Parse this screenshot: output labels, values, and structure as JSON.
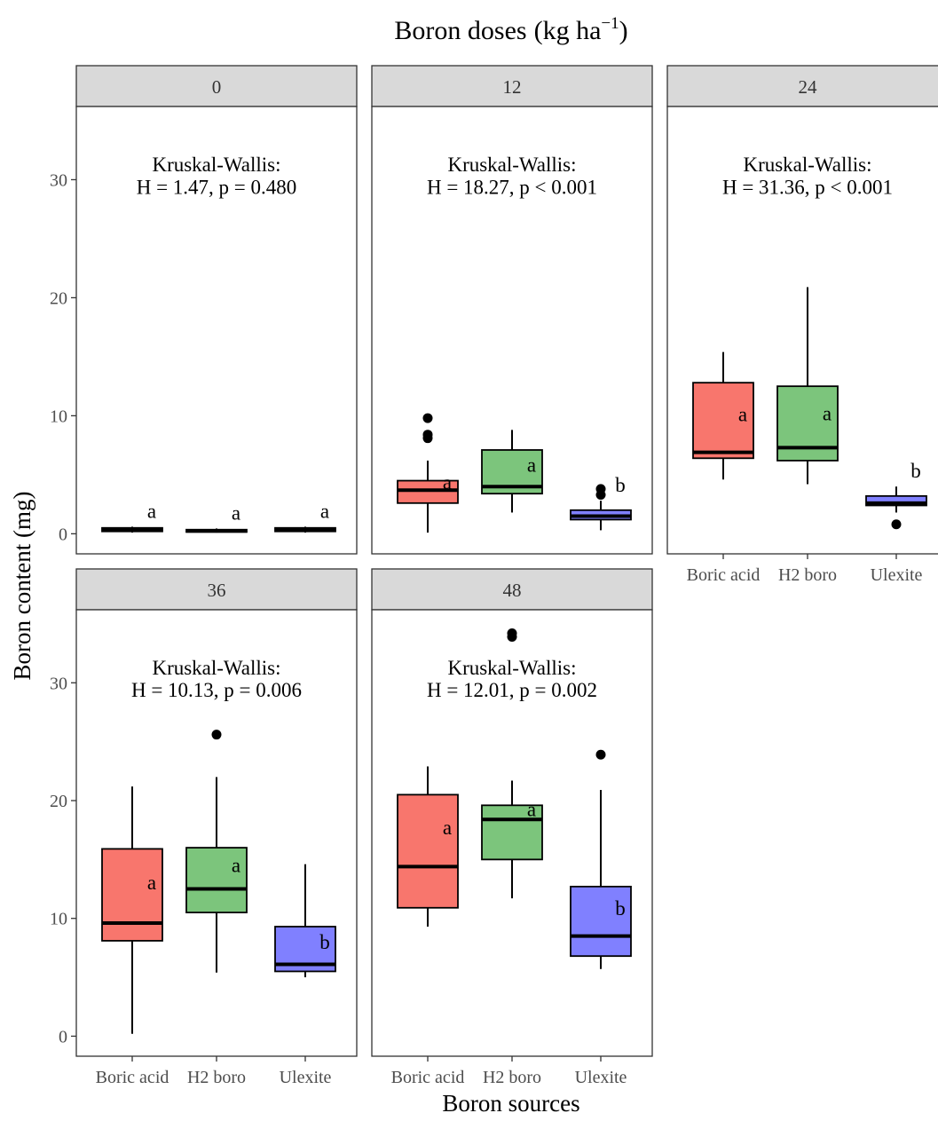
{
  "chart_data": {
    "type": "box",
    "title": "Boron doses",
    "title_units": [
      "kg ha",
      "−1"
    ],
    "xlabel": "Boron sources",
    "ylabel": "Boron content (mg)",
    "ylim": [
      0,
      35
    ],
    "yticks": [
      0,
      10,
      20,
      30
    ],
    "categories": [
      "Boric acid",
      "H2 boro",
      "Ulexite"
    ],
    "colors": {
      "Boric acid": "#f8766d",
      "H2 boro": "#7cc57c",
      "Ulexite": "#8080ff"
    },
    "grid": false,
    "legend": "none",
    "panels": [
      {
        "dose": "0",
        "test_label": "Kruskal-Wallis:",
        "test_result": "H = 1.47, p = 0.480",
        "boxes": [
          {
            "category": "Boric acid",
            "whisker_low": 0.1,
            "q1": 0.2,
            "median": 0.3,
            "q3": 0.5,
            "whisker_high": 0.6,
            "outliers": [],
            "letter": "a"
          },
          {
            "category": "H2 boro",
            "whisker_low": 0.1,
            "q1": 0.15,
            "median": 0.25,
            "q3": 0.35,
            "whisker_high": 0.45,
            "outliers": [],
            "letter": "a"
          },
          {
            "category": "Ulexite",
            "whisker_low": 0.1,
            "q1": 0.2,
            "median": 0.35,
            "q3": 0.5,
            "whisker_high": 0.6,
            "outliers": [],
            "letter": "a"
          }
        ]
      },
      {
        "dose": "12",
        "test_label": "Kruskal-Wallis:",
        "test_result": "H = 18.27, p < 0.001",
        "boxes": [
          {
            "category": "Boric acid",
            "whisker_low": 0.1,
            "q1": 2.6,
            "median": 3.7,
            "q3": 4.5,
            "whisker_high": 6.2,
            "outliers": [
              8.1,
              8.4,
              9.8
            ],
            "letter": "a"
          },
          {
            "category": "H2 boro",
            "whisker_low": 1.8,
            "q1": 3.4,
            "median": 4.0,
            "q3": 7.1,
            "whisker_high": 8.8,
            "outliers": [],
            "letter": "a"
          },
          {
            "category": "Ulexite",
            "whisker_low": 0.3,
            "q1": 1.2,
            "median": 1.5,
            "q3": 2.0,
            "whisker_high": 2.8,
            "outliers": [
              3.3,
              3.8
            ],
            "letter": "b"
          }
        ]
      },
      {
        "dose": "24",
        "test_label": "Kruskal-Wallis:",
        "test_result": "H = 31.36, p < 0.001",
        "boxes": [
          {
            "category": "Boric acid",
            "whisker_low": 4.6,
            "q1": 6.4,
            "median": 6.9,
            "q3": 12.8,
            "whisker_high": 15.4,
            "outliers": [],
            "letter": "a"
          },
          {
            "category": "H2 boro",
            "whisker_low": 4.2,
            "q1": 6.2,
            "median": 7.3,
            "q3": 12.5,
            "whisker_high": 20.9,
            "outliers": [],
            "letter": "a"
          },
          {
            "category": "Ulexite",
            "whisker_low": 1.8,
            "q1": 2.4,
            "median": 2.6,
            "q3": 3.2,
            "whisker_high": 4.0,
            "outliers": [
              0.8
            ],
            "letter": "b"
          }
        ]
      },
      {
        "dose": "36",
        "test_label": "Kruskal-Wallis:",
        "test_result": "H = 10.13, p = 0.006",
        "boxes": [
          {
            "category": "Boric acid",
            "whisker_low": 0.2,
            "q1": 8.1,
            "median": 9.6,
            "q3": 15.9,
            "whisker_high": 21.2,
            "outliers": [],
            "letter": "a"
          },
          {
            "category": "H2 boro",
            "whisker_low": 5.4,
            "q1": 10.5,
            "median": 12.5,
            "q3": 16.0,
            "whisker_high": 22.0,
            "outliers": [
              25.6
            ],
            "letter": "a"
          },
          {
            "category": "Ulexite",
            "whisker_low": 5.0,
            "q1": 5.5,
            "median": 6.1,
            "q3": 9.3,
            "whisker_high": 14.6,
            "outliers": [],
            "letter": "b"
          }
        ]
      },
      {
        "dose": "48",
        "test_label": "Kruskal-Wallis:",
        "test_result": "H = 12.01, p = 0.002",
        "boxes": [
          {
            "category": "Boric acid",
            "whisker_low": 9.3,
            "q1": 10.9,
            "median": 14.4,
            "q3": 20.5,
            "whisker_high": 22.9,
            "outliers": [],
            "letter": "a"
          },
          {
            "category": "H2 boro",
            "whisker_low": 11.7,
            "q1": 15.0,
            "median": 18.4,
            "q3": 19.6,
            "whisker_high": 21.7,
            "outliers": [
              33.9,
              34.2
            ],
            "letter": "a"
          },
          {
            "category": "Ulexite",
            "whisker_low": 5.7,
            "q1": 6.8,
            "median": 8.5,
            "q3": 12.7,
            "whisker_high": 20.9,
            "outliers": [
              23.9
            ],
            "letter": "b"
          }
        ]
      }
    ]
  }
}
